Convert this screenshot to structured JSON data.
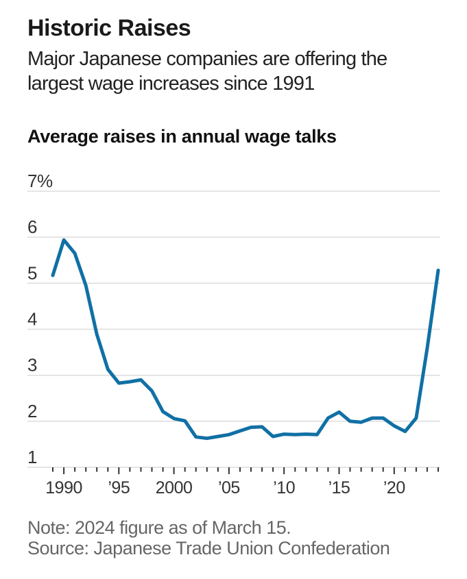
{
  "header": {
    "title": "Historic Raises",
    "subtitle_line1": "Major Japanese companies are offering the",
    "subtitle_line2": "largest wage increases since 1991"
  },
  "chart": {
    "heading": "Average raises in annual wage talks",
    "line_color": "#1070a5",
    "grid_color": "#dcdcdc",
    "tick_color": "#333333",
    "axis_label_color": "#333333"
  },
  "chart_data": {
    "type": "line",
    "title": "Average raises in annual wage talks",
    "unit": "%",
    "x": [
      1989,
      1990,
      1991,
      1992,
      1993,
      1994,
      1995,
      1996,
      1997,
      1998,
      1999,
      2000,
      2001,
      2002,
      2003,
      2004,
      2005,
      2006,
      2007,
      2008,
      2009,
      2010,
      2011,
      2012,
      2013,
      2014,
      2015,
      2016,
      2017,
      2018,
      2019,
      2020,
      2021,
      2022,
      2023,
      2024
    ],
    "values": [
      5.17,
      5.94,
      5.65,
      4.95,
      3.89,
      3.13,
      2.83,
      2.86,
      2.9,
      2.66,
      2.21,
      2.06,
      2.01,
      1.66,
      1.63,
      1.67,
      1.71,
      1.79,
      1.87,
      1.88,
      1.67,
      1.72,
      1.71,
      1.72,
      1.71,
      2.07,
      2.2,
      2.0,
      1.98,
      2.07,
      2.07,
      1.9,
      1.78,
      2.07,
      3.58,
      5.28
    ],
    "ylim": [
      1,
      7
    ],
    "xlim": [
      1989,
      2024
    ],
    "grid": "horizontal",
    "legend": "none",
    "y_ticks": [
      {
        "value": 7,
        "label": "7%"
      },
      {
        "value": 6,
        "label": "6"
      },
      {
        "value": 5,
        "label": "5"
      },
      {
        "value": 4,
        "label": "4"
      },
      {
        "value": 3,
        "label": "3"
      },
      {
        "value": 2,
        "label": "2"
      },
      {
        "value": 1,
        "label": "1"
      }
    ],
    "x_major_ticks": [
      {
        "value": 1990,
        "label": "1990"
      },
      {
        "value": 1995,
        "label": "’95"
      },
      {
        "value": 2000,
        "label": "2000"
      },
      {
        "value": 2005,
        "label": "’05"
      },
      {
        "value": 2010,
        "label": "’10"
      },
      {
        "value": 2015,
        "label": "’15"
      },
      {
        "value": 2020,
        "label": "’20"
      }
    ],
    "x_minor_tick_step": 1
  },
  "footer": {
    "note": "Note: 2024 figure as of March 15.",
    "source": "Source: Japanese Trade Union Confederation"
  }
}
